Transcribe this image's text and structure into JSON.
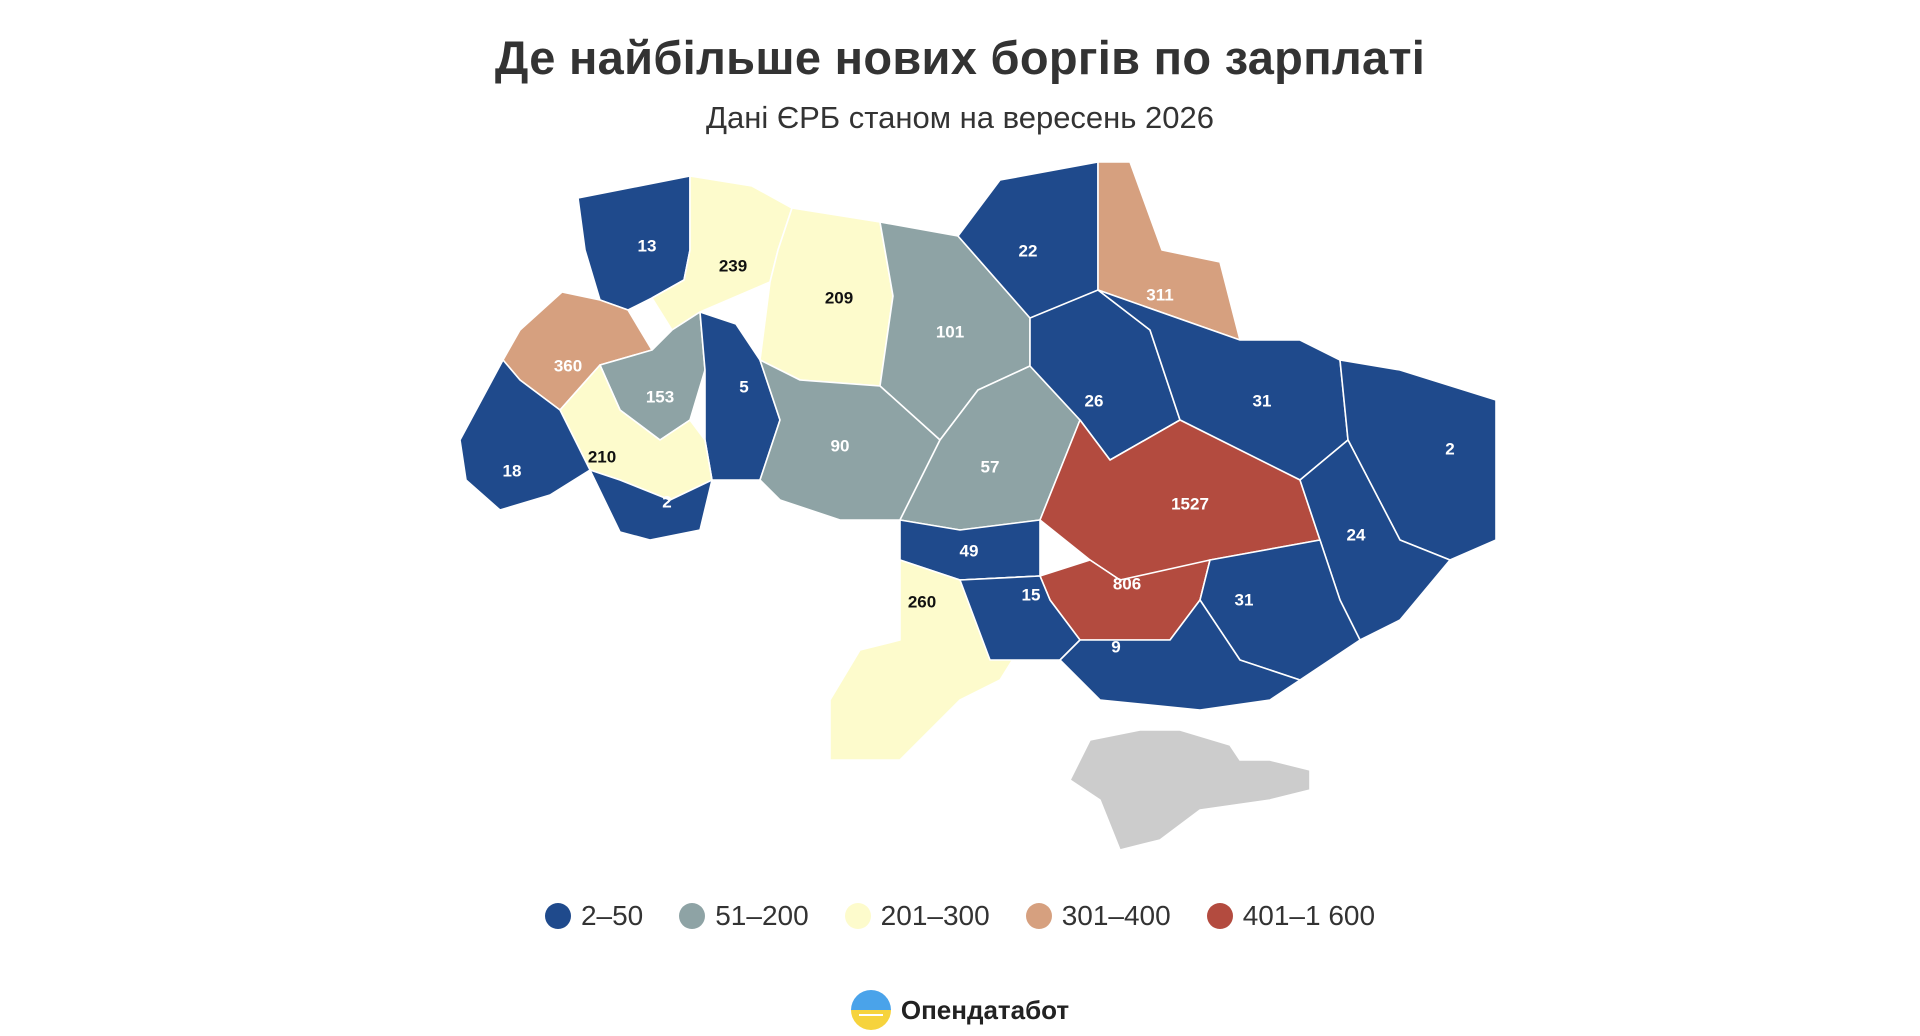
{
  "title": "Де найбільше нових боргів по зарплаті",
  "subtitle": "Дані ЄРБ станом на вересень 2026",
  "colors": {
    "bin_1": "#1f4a8c",
    "bin_2": "#8ea3a5",
    "bin_3": "#fdfbcc",
    "bin_4": "#d6a07f",
    "bin_5": "#b34b3f",
    "no_data": "#cccccc",
    "label_light": "#ffffff",
    "label_dark": "#111111"
  },
  "legend": [
    {
      "label": "2–50",
      "color": "#1f4a8c"
    },
    {
      "label": "51–200",
      "color": "#8ea3a5"
    },
    {
      "label": "201–300",
      "color": "#fdfbcc"
    },
    {
      "label": "301–400",
      "color": "#d6a07f"
    },
    {
      "label": "401–1 600",
      "color": "#b34b3f"
    }
  ],
  "regions": [
    {
      "value": "13",
      "bin": 1
    },
    {
      "value": "239",
      "bin": 3
    },
    {
      "value": "209",
      "bin": 3
    },
    {
      "value": "101",
      "bin": 2
    },
    {
      "value": "22",
      "bin": 1
    },
    {
      "value": "311",
      "bin": 4
    },
    {
      "value": "360",
      "bin": 4
    },
    {
      "value": "153",
      "bin": 2
    },
    {
      "value": "5",
      "bin": 1
    },
    {
      "value": "90",
      "bin": 2
    },
    {
      "value": "210",
      "bin": 3
    },
    {
      "value": "18",
      "bin": 1
    },
    {
      "value": "2",
      "bin": 1
    },
    {
      "value": "57",
      "bin": 2
    },
    {
      "value": "49",
      "bin": 1
    },
    {
      "value": "26",
      "bin": 1
    },
    {
      "value": "31",
      "bin": 1
    },
    {
      "value": "2",
      "bin": 1
    },
    {
      "value": "1527",
      "bin": 5
    },
    {
      "value": "806",
      "bin": 5
    },
    {
      "value": "24",
      "bin": 1
    },
    {
      "value": "260",
      "bin": 3
    },
    {
      "value": "15",
      "bin": 1
    },
    {
      "value": "31",
      "bin": 1
    },
    {
      "value": "9",
      "bin": 1
    },
    {
      "value": "",
      "bin": 0
    }
  ],
  "brand": {
    "name": "Опендатабот",
    "icon": "opendatabot-logo-icon"
  }
}
